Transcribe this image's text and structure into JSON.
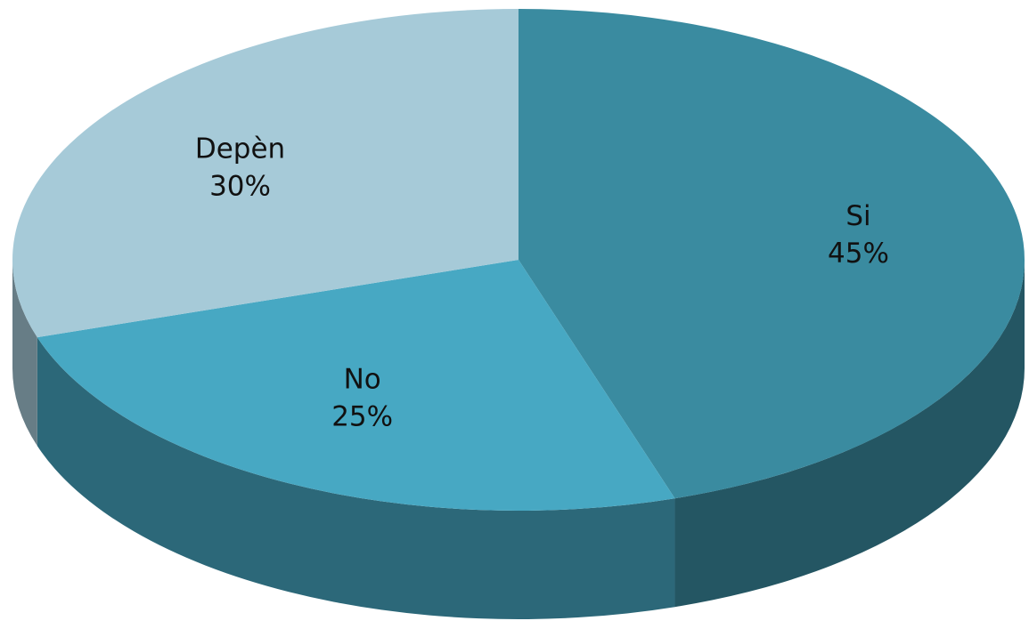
{
  "chart_data": {
    "type": "pie",
    "categories": [
      "Si",
      "No",
      "Depèn"
    ],
    "values": [
      45,
      25,
      30
    ],
    "value_labels": [
      "45%",
      "25%",
      "30%"
    ],
    "colors": [
      "#3a8ba0",
      "#47a8c3",
      "#a6cad8"
    ]
  }
}
